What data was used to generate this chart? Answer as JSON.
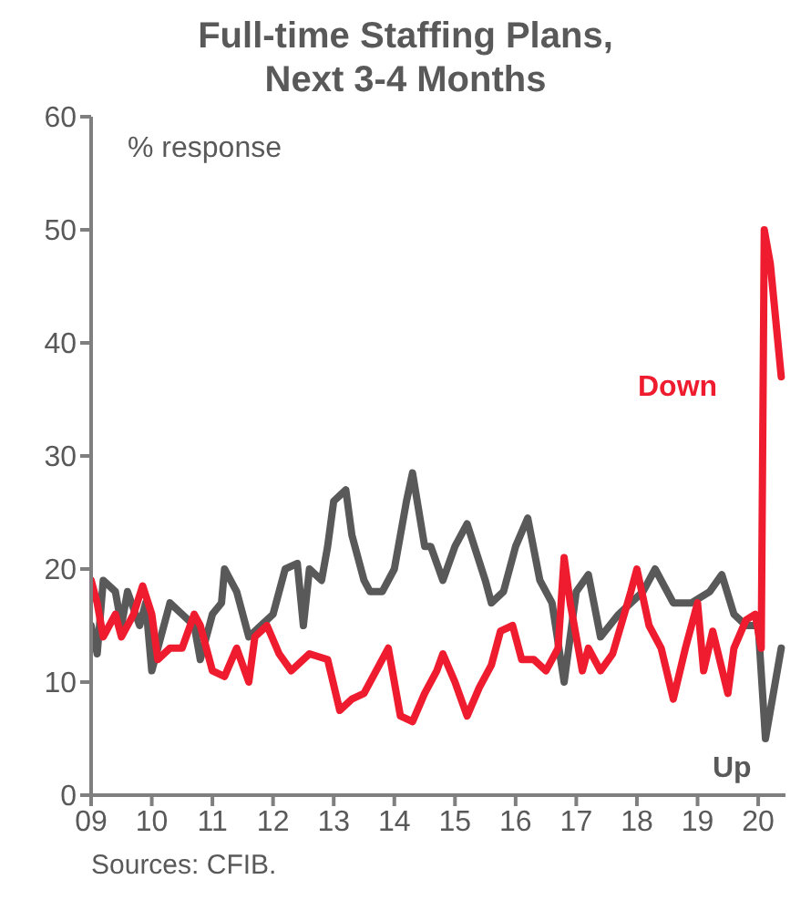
{
  "chart_data": {
    "type": "line",
    "title": "Full-time Staffing Plans, Next 3-4 Months",
    "ylabel": "% response",
    "annotations": [
      "Sources: CFIB."
    ],
    "xlim": [
      2009,
      2020.45
    ],
    "xticks": [
      {
        "value": 2009,
        "label": "09"
      },
      {
        "value": 2010,
        "label": "10"
      },
      {
        "value": 2011,
        "label": "11"
      },
      {
        "value": 2012,
        "label": "12"
      },
      {
        "value": 2013,
        "label": "13"
      },
      {
        "value": 2014,
        "label": "14"
      },
      {
        "value": 2015,
        "label": "15"
      },
      {
        "value": 2016,
        "label": "16"
      },
      {
        "value": 2017,
        "label": "17"
      },
      {
        "value": 2018,
        "label": "18"
      },
      {
        "value": 2019,
        "label": "19"
      },
      {
        "value": 2020,
        "label": "20"
      }
    ],
    "ylim": [
      0,
      60
    ],
    "yticks": [
      0,
      10,
      20,
      30,
      40,
      50,
      60
    ],
    "grid": false,
    "legend": false,
    "marker": "none",
    "line_style": "solid",
    "series": [
      {
        "name": "Up",
        "color": "#595959",
        "x": [
          2009.0,
          2009.1,
          2009.2,
          2009.4,
          2009.5,
          2009.6,
          2009.8,
          2009.9,
          2010.0,
          2010.2,
          2010.3,
          2010.5,
          2010.7,
          2010.8,
          2011.0,
          2011.15,
          2011.2,
          2011.4,
          2011.6,
          2011.8,
          2012.0,
          2012.2,
          2012.4,
          2012.5,
          2012.6,
          2012.8,
          2012.9,
          2013.0,
          2013.2,
          2013.3,
          2013.5,
          2013.6,
          2013.8,
          2014.0,
          2014.2,
          2014.3,
          2014.5,
          2014.6,
          2014.8,
          2015.0,
          2015.2,
          2015.5,
          2015.6,
          2015.8,
          2016.0,
          2016.2,
          2016.4,
          2016.6,
          2016.8,
          2017.0,
          2017.2,
          2017.4,
          2017.7,
          2017.9,
          2018.1,
          2018.3,
          2018.6,
          2018.9,
          2019.2,
          2019.4,
          2019.6,
          2019.8,
          2020.0,
          2020.12,
          2020.38
        ],
        "values": [
          15,
          12.5,
          19,
          18,
          15,
          18,
          15,
          17,
          11,
          15,
          17,
          16,
          15,
          12,
          16,
          17,
          20,
          18,
          14,
          15,
          16,
          20,
          20.5,
          15,
          20,
          19,
          22,
          26,
          27,
          23,
          19,
          18,
          18,
          20,
          26,
          28.5,
          22,
          22,
          19,
          22,
          24,
          19,
          17,
          18,
          22,
          24.5,
          19,
          17,
          10,
          18,
          19.5,
          14,
          16,
          17,
          18,
          20,
          17,
          17,
          18,
          19.5,
          16,
          15,
          15,
          5,
          13
        ]
      },
      {
        "name": "Down",
        "color": "#ee1c2e",
        "x": [
          2009.0,
          2009.1,
          2009.2,
          2009.4,
          2009.5,
          2009.7,
          2009.85,
          2010.0,
          2010.1,
          2010.3,
          2010.5,
          2010.7,
          2010.8,
          2011.0,
          2011.2,
          2011.4,
          2011.6,
          2011.7,
          2011.9,
          2012.1,
          2012.3,
          2012.6,
          2012.9,
          2013.1,
          2013.3,
          2013.5,
          2013.7,
          2013.9,
          2014.1,
          2014.3,
          2014.5,
          2014.7,
          2014.8,
          2015.0,
          2015.2,
          2015.4,
          2015.6,
          2015.75,
          2015.95,
          2016.1,
          2016.3,
          2016.5,
          2016.7,
          2016.8,
          2016.9,
          2017.1,
          2017.2,
          2017.4,
          2017.6,
          2017.9,
          2018.0,
          2018.2,
          2018.4,
          2018.6,
          2018.8,
          2019.0,
          2019.1,
          2019.25,
          2019.5,
          2019.6,
          2019.8,
          2019.95,
          2020.05,
          2020.1,
          2020.2,
          2020.38
        ],
        "values": [
          19,
          17,
          14,
          16,
          14,
          16,
          18.5,
          16,
          12,
          13,
          13,
          16,
          15,
          11,
          10.5,
          13,
          10,
          14,
          15,
          12.5,
          11,
          12.5,
          12,
          7.5,
          8.5,
          9,
          11,
          13,
          7,
          6.5,
          9,
          11,
          12.5,
          10,
          7,
          9.5,
          11.5,
          14.5,
          15,
          12,
          12,
          11,
          13,
          21,
          17,
          11,
          13,
          11,
          12.5,
          18,
          20,
          15,
          13,
          8.5,
          13,
          17,
          11,
          14.5,
          9,
          13,
          15.5,
          16,
          13,
          50,
          47,
          37
        ]
      }
    ]
  }
}
